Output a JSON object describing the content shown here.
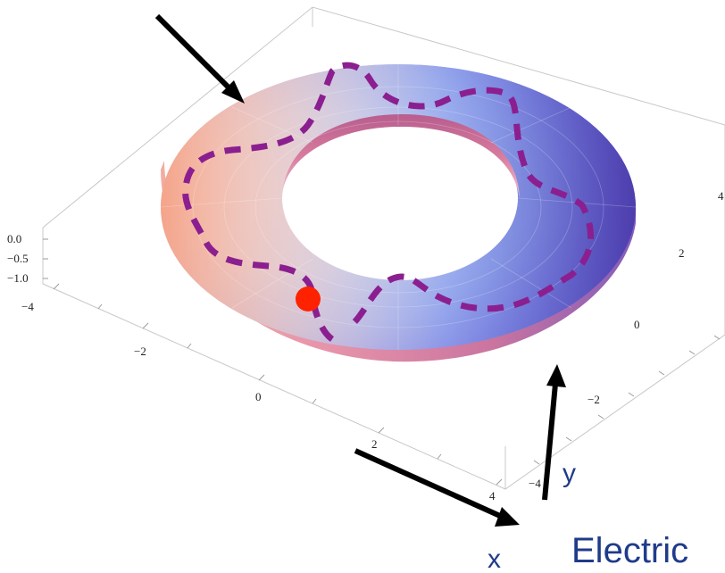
{
  "z_ticks": [
    "0.0",
    "−0.5",
    "−1.0"
  ],
  "x_ticks": [
    "−4",
    "−2",
    "0",
    "2",
    "4"
  ],
  "y_ticks": [
    "4",
    "2",
    "0",
    "−2",
    "−4"
  ],
  "labels": {
    "x": "x",
    "y": "y",
    "caption": "Electric"
  },
  "colors": {
    "path": "#8b1f8f",
    "particle": "#ff2200",
    "axis_label": "#1f3b8a",
    "arrow": "#000000"
  }
}
